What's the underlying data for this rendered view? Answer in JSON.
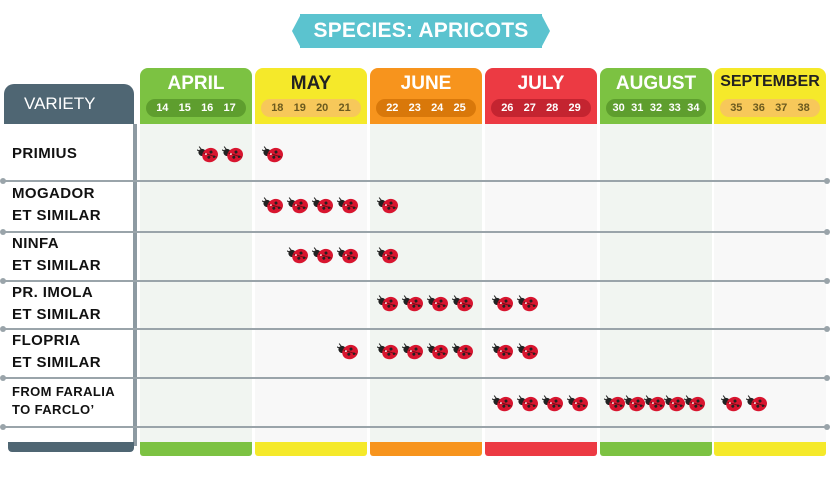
{
  "title": "SPECIES: APRICOTS",
  "variety_header": "VARIETY",
  "months": [
    {
      "name": "APRIL",
      "weeks": [
        "14",
        "15",
        "16",
        "17"
      ],
      "color": "#7cc242",
      "pill": "#5e9e2e",
      "text": "#ffffff",
      "pill_text": "#ffffff"
    },
    {
      "name": "MAY",
      "weeks": [
        "18",
        "19",
        "20",
        "21"
      ],
      "color": "#f5e92a",
      "pill": "#f7c85a",
      "text": "#222222",
      "pill_text": "#6b5a1e"
    },
    {
      "name": "JUNE",
      "weeks": [
        "22",
        "23",
        "24",
        "25"
      ],
      "color": "#f7941d",
      "pill": "#d9780a",
      "text": "#ffffff",
      "pill_text": "#ffffff"
    },
    {
      "name": "JULY",
      "weeks": [
        "26",
        "27",
        "28",
        "29"
      ],
      "color": "#ec3a43",
      "pill": "#c42430",
      "text": "#ffffff",
      "pill_text": "#ffffff"
    },
    {
      "name": "AUGUST",
      "weeks": [
        "30",
        "31",
        "32",
        "33",
        "34"
      ],
      "color": "#7cc242",
      "pill": "#5e9e2e",
      "text": "#ffffff",
      "pill_text": "#ffffff"
    },
    {
      "name": "SEPTEMBER",
      "weeks": [
        "35",
        "36",
        "37",
        "38"
      ],
      "color": "#f5e92a",
      "pill": "#f7c85a",
      "text": "#222222",
      "pill_text": "#6b5a1e"
    }
  ],
  "varieties": [
    {
      "line1": "PRIMIUS",
      "line2": ""
    },
    {
      "line1": "MOGADOR",
      "line2": "ET SIMILAR"
    },
    {
      "line1": "NINFA",
      "line2": "ET SIMILAR"
    },
    {
      "line1": "PR. IMOLA",
      "line2": "ET SIMILAR"
    },
    {
      "line1": "FLOPRIA",
      "line2": "ET SIMILAR"
    },
    {
      "line1": "FROM FARALIA",
      "line2": "TO FARCLO’"
    }
  ],
  "harvest_weeks": [
    [
      16,
      17,
      18
    ],
    [
      18,
      19,
      20,
      21,
      22
    ],
    [
      19,
      20,
      21,
      22
    ],
    [
      22,
      23,
      24,
      25,
      26,
      27
    ],
    [
      21,
      22,
      23,
      24,
      25,
      26,
      27
    ],
    [
      26,
      27,
      28,
      29,
      30,
      31,
      32,
      33,
      34,
      35,
      36
    ]
  ],
  "marker_icon": "ladybug-icon",
  "colors": {
    "banner": "#5bc3cf",
    "variety_header": "#4f6673",
    "ladybug": "#d8152f"
  }
}
